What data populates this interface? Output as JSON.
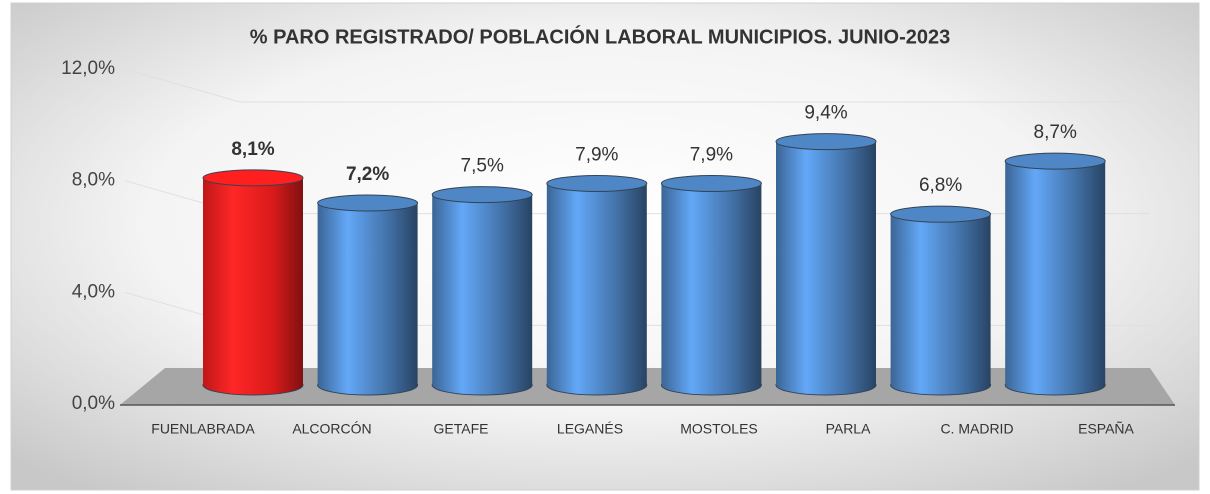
{
  "chart_data": {
    "type": "bar",
    "title": "% PARO REGISTRADO/ POBLACIÓN LABORAL MUNICIPIOS. JUNIO-2023",
    "categories": [
      "FUENLABRADA",
      "ALCORCÓN",
      "GETAFE",
      "LEGANÉS",
      "MOSTOLES",
      "PARLA",
      "C. MADRID",
      "ESPAÑA"
    ],
    "values": [
      8.1,
      7.2,
      7.5,
      7.9,
      7.9,
      9.4,
      6.8,
      8.7
    ],
    "value_labels": [
      "8,1%",
      "7,2%",
      "7,5%",
      "7,9%",
      "7,9%",
      "9,4%",
      "6,8%",
      "8,7%"
    ],
    "colors": [
      "#ff1f1f",
      "#4f86c6",
      "#4f86c6",
      "#4f86c6",
      "#4f86c6",
      "#4f86c6",
      "#4f86c6",
      "#4f86c6"
    ],
    "ylim": [
      0,
      12
    ],
    "yticks": [
      {
        "value": 0,
        "label": "0,0%"
      },
      {
        "value": 4,
        "label": "4,0%"
      },
      {
        "value": 8,
        "label": "8,0%"
      },
      {
        "value": 12,
        "label": "12,0%"
      }
    ],
    "grid": true
  }
}
